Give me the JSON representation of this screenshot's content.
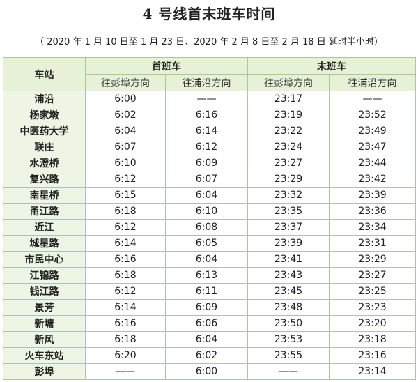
{
  "header": {
    "title": "4 号线首末班车时间",
    "subtitle": "（ 2020 年 1 月 10 日至 1 月 23 日、2020 年 2 月 8 日至 2 月 18 日 延时半小时）"
  },
  "table": {
    "corner": "车站",
    "groups": [
      "首班车",
      "末班车"
    ],
    "sub_headers": [
      "往彭埠方向",
      "往浦沿方向",
      "往彭埠方向",
      "往浦沿方向"
    ],
    "rows": [
      [
        "浦沿",
        "6:00",
        "——",
        "23:17",
        "——"
      ],
      [
        "杨家墩",
        "6:02",
        "6:16",
        "23:19",
        "23:52"
      ],
      [
        "中医药大学",
        "6:04",
        "6:14",
        "23:22",
        "23:49"
      ],
      [
        "联庄",
        "6:07",
        "6:12",
        "23:24",
        "23:47"
      ],
      [
        "水澄桥",
        "6:10",
        "6:09",
        "23:27",
        "23:44"
      ],
      [
        "复兴路",
        "6:12",
        "6:07",
        "23:29",
        "23:42"
      ],
      [
        "南星桥",
        "6:15",
        "6:04",
        "23:32",
        "23:39"
      ],
      [
        "甬江路",
        "6:18",
        "6:10",
        "23:35",
        "23:36"
      ],
      [
        "近江",
        "6:12",
        "6:08",
        "23:37",
        "23:34"
      ],
      [
        "城星路",
        "6:14",
        "6:05",
        "23:39",
        "23:31"
      ],
      [
        "市民中心",
        "6:16",
        "6:04",
        "23:41",
        "23:29"
      ],
      [
        "江锦路",
        "6:18",
        "6:13",
        "23:43",
        "23:27"
      ],
      [
        "钱江路",
        "6:12",
        "6:11",
        "23:45",
        "23:25"
      ],
      [
        "景芳",
        "6:14",
        "6:09",
        "23:48",
        "23:23"
      ],
      [
        "新塘",
        "6:16",
        "6:06",
        "23:50",
        "23:20"
      ],
      [
        "新风",
        "6:18",
        "6:04",
        "23:53",
        "23:18"
      ],
      [
        "火车东站",
        "6:20",
        "6:02",
        "23:55",
        "23:16"
      ],
      [
        "彭埠",
        "——",
        "6:00",
        "——",
        "23:14"
      ]
    ]
  }
}
